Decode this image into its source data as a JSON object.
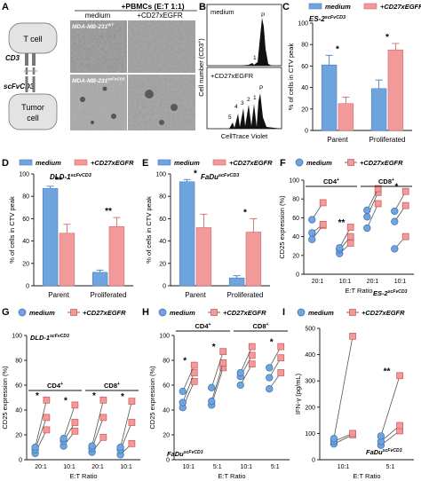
{
  "colors": {
    "medium": "#6fa4df",
    "cd27": "#f29a9a",
    "axis": "#111111",
    "micro_bg": "#8f8f8f"
  },
  "panel_a": {
    "letter": "A",
    "header": "+PBMCs (E:T 1:1)",
    "col_medium": "medium",
    "col_cd27": "+CD27xEGFR",
    "row1_label": "MDA-MB-231",
    "row1_sup": "WT",
    "row2_label": "MDA-MB-231",
    "row2_sup": "scFvCD3",
    "tcell": "T cell",
    "cd3": "CD3",
    "scfv": "scFvCD3",
    "tumor_line1": "Tumor",
    "tumor_line2": "cell"
  },
  "panel_b": {
    "letter": "B",
    "top_label": "medium",
    "bottom_label": "+CD27xEGFR",
    "p_top": "P",
    "one_top": "1",
    "peaks_bottom": [
      "5",
      "4",
      "3",
      "2",
      "1",
      "P"
    ],
    "ylabel": "Cell number (CD3",
    "ylabel_sup": "+",
    "ylabel_end": ")",
    "xlabel": "CellTrace Violet"
  },
  "legend": {
    "medium": "medium",
    "cd27": "+CD27xEGFR"
  },
  "chart_data": [
    {
      "id": "C",
      "type": "bar",
      "title": "ES-2",
      "title_sup": "scFvCD3",
      "categories": [
        "Parent",
        "Proliferated"
      ],
      "ylabel": "% of cells in CTV peak",
      "ylim": [
        0,
        100
      ],
      "yticks": [
        0,
        20,
        40,
        60,
        80,
        100
      ],
      "series": [
        {
          "name": "medium",
          "values": [
            61,
            39
          ],
          "err": [
            9,
            8
          ]
        },
        {
          "name": "+CD27xEGFR",
          "values": [
            25,
            75
          ],
          "err": [
            6,
            6
          ]
        }
      ],
      "sig": [
        "*",
        "*"
      ]
    },
    {
      "id": "D",
      "type": "bar",
      "title": "DLD-1",
      "title_sup": "scFvCD3",
      "categories": [
        "Parent",
        "Proliferated"
      ],
      "ylabel": "% of cells in CTV peak",
      "ylim": [
        0,
        100
      ],
      "yticks": [
        0,
        20,
        40,
        60,
        80,
        100
      ],
      "series": [
        {
          "name": "medium",
          "values": [
            87,
            12
          ],
          "err": [
            2,
            2
          ]
        },
        {
          "name": "+CD27xEGFR",
          "values": [
            47,
            53
          ],
          "err": [
            8,
            8
          ]
        }
      ],
      "sig": [
        "**",
        "**"
      ]
    },
    {
      "id": "E",
      "type": "bar",
      "title": "FaDu",
      "title_sup": "scFvCD3",
      "categories": [
        "Parent",
        "Proliferated"
      ],
      "ylabel": "% of cells in CTV peak",
      "ylim": [
        0,
        100
      ],
      "yticks": [
        0,
        20,
        40,
        60,
        80,
        100
      ],
      "series": [
        {
          "name": "medium",
          "values": [
            93,
            7
          ],
          "err": [
            2,
            2
          ]
        },
        {
          "name": "+CD27xEGFR",
          "values": [
            52,
            48
          ],
          "err": [
            12,
            12
          ]
        }
      ],
      "sig": [
        "*",
        "*"
      ]
    },
    {
      "id": "F",
      "type": "scatter",
      "title": "ES-2",
      "title_sup": "scFvCD3",
      "title_pos": "bottom-right",
      "ylabel": "CD25 expression (%)",
      "xlabel": "E:T Ratio",
      "ylim": [
        0,
        100
      ],
      "yticks": [
        0,
        20,
        40,
        60,
        80,
        100
      ],
      "groups": [
        "CD4",
        "CD8"
      ],
      "group_sup": "+",
      "ratios": [
        "20:1",
        "10:1",
        "20:1",
        "10:1"
      ],
      "pairs": [
        [
          [
            37,
            52
          ],
          [
            44,
            53
          ],
          [
            58,
            76
          ]
        ],
        [
          [
            22,
            33
          ],
          [
            26,
            40
          ],
          [
            28,
            50
          ]
        ],
        [
          [
            49,
            75
          ],
          [
            61,
            87
          ],
          [
            68,
            91
          ]
        ],
        [
          [
            27,
            40
          ],
          [
            56,
            73
          ],
          [
            67,
            88
          ]
        ]
      ],
      "sig": [
        "",
        "**",
        "",
        "*"
      ]
    },
    {
      "id": "G",
      "type": "scatter",
      "title": "DLD-1",
      "title_sup": "scFvCD3",
      "title_pos": "top-left",
      "ylabel": "CD25 expression (%)",
      "xlabel": "E:T Ratio",
      "ylim": [
        0,
        100
      ],
      "yticks": [
        0,
        20,
        40,
        60,
        80,
        100
      ],
      "groups": [
        "CD4",
        "CD8"
      ],
      "group_sup": "+",
      "ratios": [
        "20:1",
        "10:1",
        "20:1",
        "10:1"
      ],
      "pairs": [
        [
          [
            5,
            24
          ],
          [
            8,
            34
          ],
          [
            10,
            48
          ]
        ],
        [
          [
            11,
            23
          ],
          [
            15,
            30
          ],
          [
            17,
            44
          ]
        ],
        [
          [
            6,
            18
          ],
          [
            9,
            34
          ],
          [
            11,
            48
          ]
        ],
        [
          [
            4,
            13
          ],
          [
            8,
            30
          ],
          [
            10,
            47
          ]
        ]
      ],
      "sig": [
        "*",
        "*",
        "*",
        "*"
      ]
    },
    {
      "id": "H",
      "type": "scatter",
      "title": "FaDu",
      "title_sup": "scFvCD3",
      "title_pos": "bottom-left",
      "ylabel": "CD25 expression (%)",
      "xlabel": "E:T Ratio",
      "ylim": [
        0,
        100
      ],
      "yticks": [
        0,
        20,
        40,
        60,
        80,
        100
      ],
      "groups": [
        "CD4",
        "CD8"
      ],
      "group_sup": "+",
      "ratios": [
        "10:1",
        "5:1",
        "10:1",
        "5:1"
      ],
      "pairs": [
        [
          [
            42,
            63
          ],
          [
            46,
            70
          ],
          [
            55,
            76
          ]
        ],
        [
          [
            44,
            74
          ],
          [
            47,
            78
          ],
          [
            58,
            87
          ]
        ],
        [
          [
            60,
            77
          ],
          [
            67,
            84
          ],
          [
            70,
            91
          ]
        ],
        [
          [
            57,
            70
          ],
          [
            66,
            82
          ],
          [
            74,
            91
          ]
        ]
      ],
      "sig": [
        "*",
        "*",
        "",
        "*"
      ]
    },
    {
      "id": "I",
      "type": "scatter",
      "title": "FaDu",
      "title_sup": "scFvCD3",
      "title_pos": "bottom-right",
      "ylabel": "IFN-γ (pg/mL)",
      "xlabel": "E:T Ratio",
      "ylim": [
        0,
        500
      ],
      "yticks": [
        0,
        100,
        200,
        300,
        400,
        500
      ],
      "groups": [],
      "group_sup": "",
      "ratios": [
        "10:1",
        "5:1"
      ],
      "pairs": [
        [
          [
            60,
            95
          ],
          [
            70,
            100
          ],
          [
            80,
            470
          ]
        ],
        [
          [
            55,
            110
          ],
          [
            70,
            130
          ],
          [
            90,
            320
          ]
        ]
      ],
      "sig": [
        "",
        "**"
      ]
    }
  ]
}
